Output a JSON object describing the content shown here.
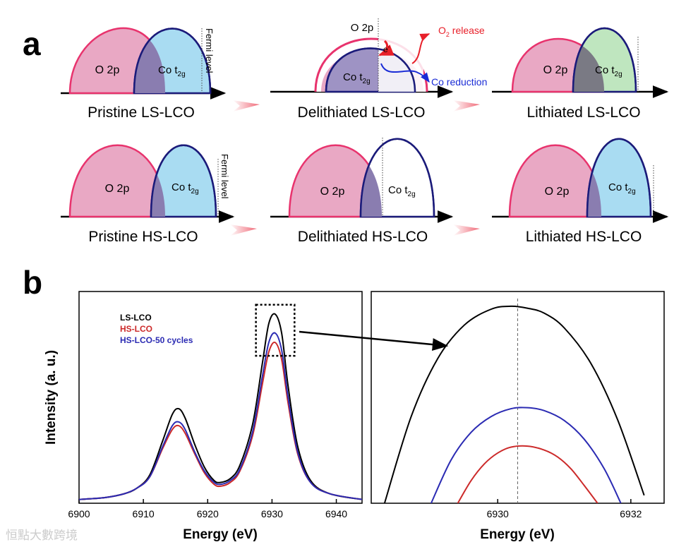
{
  "panel_a": {
    "label": "a",
    "fermi_label": "Fermi level",
    "o2p_label": "O 2p",
    "co_label_base": "Co t",
    "co_label_sub": "2g",
    "o2_release_base": "O",
    "o2_release_sub": "2",
    "o2_release_rest": " release",
    "electron_label": "e",
    "electron_sup": "-",
    "co_reduction_label": "Co reduction",
    "captions": {
      "pristine_ls": "Pristine LS-LCO",
      "delithiated_ls": "Delithiated LS-LCO",
      "lithiated_ls": "Lithiated LS-LCO",
      "pristine_hs": "Pristine HS-LCO",
      "delithiated_hs": "Delithiated HS-LCO",
      "lithiated_hs": "Lithiated HS-LCO"
    },
    "colors": {
      "o2p_fill": "#e9a8c4",
      "o2p_stroke": "#e8336d",
      "co_fill": "#a9dcf2",
      "co_fill_lithiated_ls": "#bfe6bf",
      "co_stroke": "#1b1b7a",
      "overlap_fill": "#8a7db0",
      "arrow": "#f06a78",
      "o2_release": "#e8202a",
      "co_reduction": "#1a2cd6"
    }
  },
  "panel_b": {
    "label": "b",
    "chart_data": [
      {
        "type": "line",
        "title": "",
        "xlabel": "Energy (eV)",
        "ylabel": "Intensity (a. u.)",
        "xlim": [
          6900,
          6944
        ],
        "ylim": [
          0,
          1.12
        ],
        "xticks": [
          6900,
          6910,
          6920,
          6930,
          6940
        ],
        "legend_position": "top-left",
        "series": [
          {
            "name": "LS-LCO",
            "color": "#000000",
            "x": [
              6900,
              6904,
              6907,
              6909,
              6911,
              6913,
              6914.5,
              6915.5,
              6916.5,
              6918,
              6919.5,
              6921,
              6922,
              6923.5,
              6925,
              6927,
              6928.5,
              6929.5,
              6930.5,
              6931.5,
              6932.5,
              6934,
              6936,
              6939,
              6944
            ],
            "y": [
              0.02,
              0.03,
              0.05,
              0.08,
              0.15,
              0.33,
              0.47,
              0.5,
              0.45,
              0.31,
              0.19,
              0.12,
              0.11,
              0.13,
              0.2,
              0.42,
              0.74,
              0.95,
              1.0,
              0.9,
              0.62,
              0.3,
              0.12,
              0.05,
              0.02
            ]
          },
          {
            "name": "HS-LCO",
            "color": "#cc2a2a",
            "x": [
              6900,
              6904,
              6907,
              6909,
              6911,
              6913,
              6914.5,
              6915.5,
              6916.5,
              6918,
              6919.5,
              6921,
              6922,
              6923.5,
              6925,
              6927,
              6928.5,
              6929.5,
              6930.5,
              6931.5,
              6932.5,
              6934,
              6936,
              6939,
              6944
            ],
            "y": [
              0.02,
              0.03,
              0.05,
              0.08,
              0.14,
              0.29,
              0.39,
              0.41,
              0.37,
              0.26,
              0.16,
              0.1,
              0.09,
              0.11,
              0.17,
              0.36,
              0.63,
              0.8,
              0.85,
              0.76,
              0.53,
              0.26,
              0.11,
              0.05,
              0.02
            ]
          },
          {
            "name": "HS-LCO-50 cycles",
            "color": "#2b2bb3",
            "x": [
              6900,
              6904,
              6907,
              6909,
              6911,
              6913,
              6914.5,
              6915.5,
              6916.5,
              6918,
              6919.5,
              6921,
              6922,
              6923.5,
              6925,
              6927,
              6928.5,
              6929.5,
              6930.5,
              6931.5,
              6932.5,
              6934,
              6936,
              6939,
              6944
            ],
            "y": [
              0.02,
              0.03,
              0.05,
              0.08,
              0.14,
              0.3,
              0.41,
              0.43,
              0.39,
              0.27,
              0.17,
              0.11,
              0.1,
              0.12,
              0.18,
              0.38,
              0.67,
              0.85,
              0.9,
              0.81,
              0.56,
              0.27,
              0.11,
              0.05,
              0.02
            ]
          }
        ],
        "zoom_box": {
          "x_range": [
            6927.5,
            6933.5
          ],
          "y_range": [
            0.78,
            1.05
          ]
        }
      },
      {
        "type": "line",
        "title": "",
        "xlabel": "Energy (eV)",
        "ylabel": "",
        "xlim": [
          6928.1,
          6932.5
        ],
        "ylim": [
          0.8,
          1.015
        ],
        "xticks": [
          6930,
          6932
        ],
        "reference_line_x": 6930.3,
        "series": [
          {
            "name": "LS-LCO",
            "color": "#000000",
            "x": [
              6928.3,
              6928.7,
              6929.1,
              6929.5,
              6929.9,
              6930.2,
              6930.45,
              6930.7,
              6931.0,
              6931.4,
              6931.8,
              6932.2
            ],
            "y": [
              0.8,
              0.888,
              0.947,
              0.981,
              0.997,
              1.0,
              0.998,
              0.993,
              0.978,
              0.942,
              0.885,
              0.808
            ]
          },
          {
            "name": "HS-LCO-50 cycles",
            "color": "#2b2bb3",
            "x": [
              6929.0,
              6929.3,
              6929.6,
              6929.9,
              6930.2,
              6930.45,
              6930.7,
              6931.0,
              6931.3,
              6931.6,
              6931.85
            ],
            "y": [
              0.8,
              0.844,
              0.872,
              0.888,
              0.896,
              0.897,
              0.894,
              0.884,
              0.865,
              0.835,
              0.8
            ]
          },
          {
            "name": "HS-LCO",
            "color": "#cc2a2a",
            "x": [
              6929.4,
              6929.6,
              6929.8,
              6930.0,
              6930.2,
              6930.45,
              6930.7,
              6930.9,
              6931.1,
              6931.3,
              6931.5
            ],
            "y": [
              0.8,
              0.823,
              0.84,
              0.851,
              0.857,
              0.858,
              0.854,
              0.847,
              0.835,
              0.818,
              0.8
            ]
          }
        ]
      }
    ]
  },
  "watermark": "恒點大數跨境"
}
